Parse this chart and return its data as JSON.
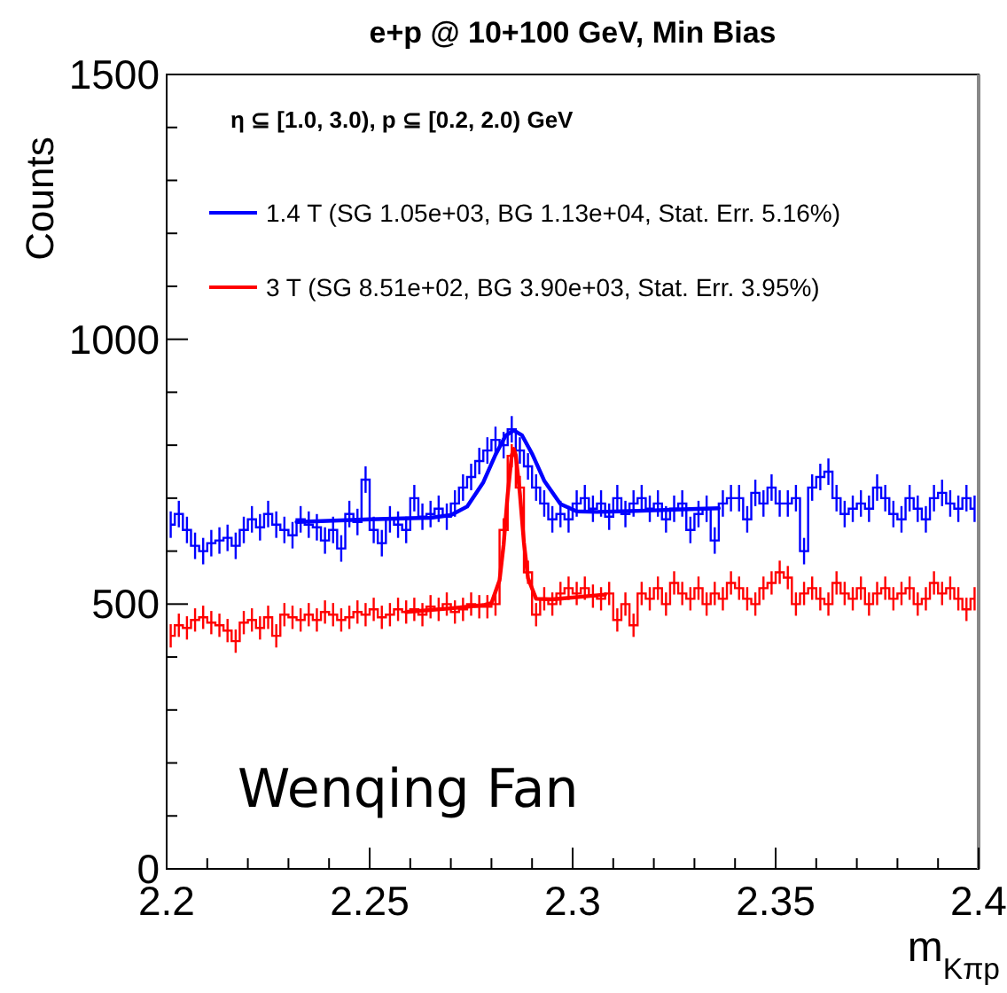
{
  "chart_data": {
    "type": "step",
    "title": "e+p @ 10+100 GeV, Min Bias",
    "xlabel": "m$_{Kπp}$",
    "ylabel": "Counts",
    "annotations": [
      "η ⊆ [1.0, 3.0), p ⊆ [0.2, 2.0) GeV",
      "Wenqing Fan"
    ],
    "x": [
      2.201,
      2.203,
      2.205,
      2.207,
      2.209,
      2.211,
      2.213,
      2.215,
      2.217,
      2.219,
      2.221,
      2.223,
      2.225,
      2.227,
      2.229,
      2.231,
      2.233,
      2.235,
      2.237,
      2.239,
      2.241,
      2.243,
      2.245,
      2.247,
      2.249,
      2.251,
      2.253,
      2.255,
      2.257,
      2.259,
      2.261,
      2.263,
      2.265,
      2.267,
      2.269,
      2.271,
      2.273,
      2.275,
      2.277,
      2.279,
      2.281,
      2.283,
      2.285,
      2.287,
      2.289,
      2.291,
      2.293,
      2.295,
      2.297,
      2.299,
      2.301,
      2.303,
      2.305,
      2.307,
      2.309,
      2.311,
      2.313,
      2.315,
      2.317,
      2.319,
      2.321,
      2.323,
      2.325,
      2.327,
      2.329,
      2.331,
      2.333,
      2.335,
      2.337,
      2.339,
      2.341,
      2.343,
      2.345,
      2.347,
      2.349,
      2.351,
      2.353,
      2.355,
      2.357,
      2.359,
      2.361,
      2.363,
      2.365,
      2.367,
      2.369,
      2.371,
      2.373,
      2.375,
      2.377,
      2.379,
      2.381,
      2.383,
      2.385,
      2.387,
      2.389,
      2.391,
      2.393,
      2.395,
      2.397,
      2.399
    ],
    "series": [
      {
        "name": "1.4 T (SG 1.05e+03, BG 1.13e+04, Stat. Err. 5.16%)",
        "color": "#0000ff",
        "values": [
          650,
          670,
          640,
          610,
          600,
          615,
          620,
          625,
          610,
          640,
          660,
          645,
          670,
          650,
          640,
          630,
          660,
          650,
          645,
          620,
          640,
          605,
          670,
          655,
          735,
          640,
          615,
          660,
          650,
          640,
          700,
          665,
          670,
          680,
          665,
          690,
          720,
          740,
          770,
          790,
          810,
          800,
          830,
          790,
          760,
          720,
          690,
          660,
          670,
          660,
          690,
          700,
          680,
          690,
          665,
          700,
          670,
          690,
          700,
          680,
          690,
          660,
          680,
          690,
          640,
          670,
          680,
          620,
          690,
          700,
          700,
          660,
          710,
          690,
          720,
          690,
          690,
          700,
          600,
          720,
          740,
          750,
          700,
          670,
          680,
          690,
          680,
          720,
          700,
          670,
          660,
          700,
          680,
          660,
          700,
          710,
          690,
          680,
          700,
          680
        ],
        "errors": [
          25,
          25,
          25,
          25,
          25,
          25,
          25,
          25,
          25,
          25,
          25,
          25,
          25,
          25,
          25,
          25,
          25,
          25,
          25,
          25,
          25,
          25,
          25,
          25,
          25,
          25,
          25,
          25,
          25,
          25,
          25,
          25,
          25,
          25,
          25,
          25,
          25,
          25,
          25,
          25,
          25,
          25,
          25,
          25,
          25,
          25,
          25,
          25,
          25,
          25,
          25,
          25,
          25,
          25,
          25,
          25,
          25,
          25,
          25,
          25,
          25,
          25,
          25,
          25,
          25,
          25,
          25,
          25,
          25,
          25,
          25,
          25,
          25,
          25,
          25,
          25,
          25,
          25,
          25,
          25,
          25,
          25,
          25,
          25,
          25,
          25,
          25,
          25,
          25,
          25,
          25,
          25,
          25,
          25,
          25,
          25,
          25,
          25,
          25,
          25
        ]
      },
      {
        "name": "3 T (SG 8.51e+02, BG 3.90e+03, Stat. Err. 3.95%)",
        "color": "#ff0000",
        "values": [
          440,
          460,
          455,
          470,
          475,
          465,
          460,
          450,
          430,
          465,
          470,
          455,
          475,
          440,
          480,
          475,
          470,
          480,
          470,
          485,
          480,
          470,
          475,
          485,
          480,
          490,
          475,
          480,
          490,
          485,
          490,
          480,
          495,
          490,
          500,
          485,
          490,
          500,
          495,
          495,
          500,
          640,
          780,
          720,
          560,
          480,
          510,
          500,
          520,
          530,
          520,
          530,
          515,
          510,
          520,
          470,
          500,
          460,
          520,
          510,
          530,
          500,
          540,
          520,
          510,
          530,
          500,
          520,
          510,
          540,
          530,
          510,
          500,
          530,
          540,
          560,
          550,
          500,
          520,
          530,
          510,
          500,
          540,
          520,
          510,
          530,
          500,
          520,
          530,
          510,
          520,
          530,
          500,
          510,
          540,
          520,
          530,
          510,
          490,
          510
        ],
        "errors": [
          22,
          22,
          22,
          22,
          22,
          22,
          22,
          22,
          22,
          22,
          22,
          22,
          22,
          22,
          22,
          22,
          22,
          22,
          22,
          22,
          22,
          22,
          22,
          22,
          22,
          22,
          22,
          22,
          22,
          22,
          22,
          22,
          22,
          22,
          22,
          22,
          22,
          22,
          22,
          22,
          22,
          22,
          22,
          22,
          22,
          22,
          22,
          22,
          22,
          22,
          22,
          22,
          22,
          22,
          22,
          22,
          22,
          22,
          22,
          22,
          22,
          22,
          22,
          22,
          22,
          22,
          22,
          22,
          22,
          22,
          22,
          22,
          22,
          22,
          22,
          22,
          22,
          22,
          22,
          22,
          22,
          22,
          22,
          22,
          22,
          22,
          22,
          22,
          22,
          22,
          22,
          22,
          22,
          22,
          22,
          22,
          22,
          22,
          22,
          22
        ]
      },
      {
        "type": "line",
        "color": "#0000ff",
        "x": [
          2.232,
          2.25,
          2.26,
          2.265,
          2.27,
          2.274,
          2.278,
          2.281,
          2.2835,
          2.2855,
          2.2875,
          2.29,
          2.293,
          2.297,
          2.301,
          2.306,
          2.312,
          2.32,
          2.336
        ],
        "values": [
          655,
          660,
          662,
          663,
          668,
          684,
          730,
          782,
          818,
          828,
          819,
          784,
          733,
          689,
          675,
          674,
          675,
          677,
          681
        ]
      },
      {
        "type": "line",
        "color": "#ff0000",
        "x": [
          2.259,
          2.27,
          2.278,
          2.28,
          2.282,
          2.283,
          2.284,
          2.285,
          2.2855,
          2.286,
          2.287,
          2.288,
          2.289,
          2.291,
          2.295,
          2.308
        ],
        "values": [
          485,
          492,
          498,
          502,
          545,
          612,
          707,
          781,
          793,
          781,
          709,
          616,
          549,
          510,
          509,
          518
        ]
      }
    ],
    "xlim": [
      2.2,
      2.4
    ],
    "xticks": [
      2.2,
      {
        "value": 2.21,
        "label": null
      },
      {
        "value": 2.22,
        "label": null
      },
      {
        "value": 2.23,
        "label": null
      },
      {
        "value": 2.24,
        "label": null
      },
      2.25,
      {
        "value": 2.26,
        "label": null
      },
      {
        "value": 2.27,
        "label": null
      },
      {
        "value": 2.28,
        "label": null
      },
      {
        "value": 2.29,
        "label": null
      },
      2.3,
      {
        "value": 2.31,
        "label": null
      },
      {
        "value": 2.32,
        "label": null
      },
      {
        "value": 2.33,
        "label": null
      },
      {
        "value": 2.34,
        "label": null
      },
      2.35,
      {
        "value": 2.36,
        "label": null
      },
      {
        "value": 2.37,
        "label": null
      },
      {
        "value": 2.38,
        "label": null
      },
      {
        "value": 2.39,
        "label": null
      },
      2.4
    ],
    "ylim": [
      0,
      1500
    ],
    "yticks": [
      0,
      {
        "value": 100,
        "label": null
      },
      {
        "value": 200,
        "label": null
      },
      {
        "value": 300,
        "label": null
      },
      {
        "value": 400,
        "label": null
      },
      500,
      {
        "value": 600,
        "label": null
      },
      {
        "value": 700,
        "label": null
      },
      {
        "value": 800,
        "label": null
      },
      {
        "value": 900,
        "label": null
      },
      1000,
      {
        "value": 1100,
        "label": null
      },
      {
        "value": 1200,
        "label": null
      },
      {
        "value": 1300,
        "label": null
      },
      {
        "value": 1400,
        "label": null
      },
      1500
    ],
    "legend": "top left"
  }
}
